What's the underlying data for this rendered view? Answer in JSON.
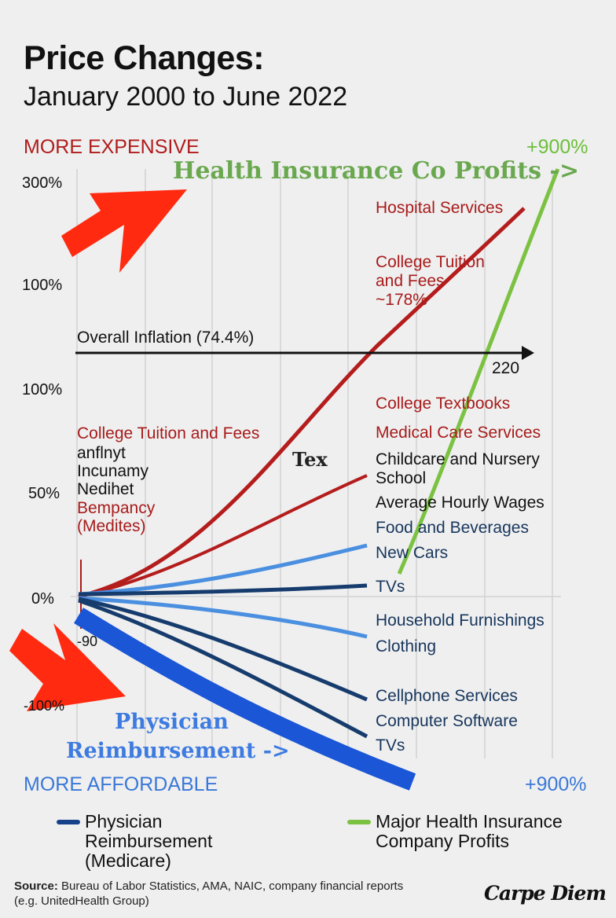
{
  "header": {
    "title": "Price Changes:",
    "subtitle": "January 2000 to June 2022"
  },
  "chart_data": {
    "type": "line",
    "title": "Price Changes:",
    "subtitle": "January 2000 to June 2022",
    "ytick_labels": [
      "300%",
      "100%",
      "100%",
      "50%",
      "0%",
      "-90",
      "-100%"
    ],
    "top_label": "MORE EXPENSIVE",
    "bottom_label": "MORE AFFORDABLE",
    "top_right_value": "+900%",
    "bottom_right_value": "+900%",
    "grid": true,
    "inflation": {
      "label": "Overall Inflation (74.4%)",
      "value_label": "220"
    },
    "annotations": {
      "health_insurance": "Health Insurance Co Profits ->",
      "physician_1": "Physician",
      "physician_2": "Reimbursement ->",
      "tex": "Tex"
    },
    "left_labels": [
      {
        "text": "College Tuition and Fees",
        "color": "#a81b1b"
      },
      {
        "text": "anflnyt",
        "color": "#111111"
      },
      {
        "text": "Incunamy",
        "color": "#111111"
      },
      {
        "text": "Nedihet",
        "color": "#111111"
      },
      {
        "text": "Bempancy",
        "color": "#a81b1b"
      },
      {
        "text": "(Medites)",
        "color": "#a81b1b"
      }
    ],
    "right_labels": [
      {
        "text": "Hospital Services",
        "color": "#a81b1b"
      },
      {
        "text": "College Tuition",
        "color": "#a81b1b"
      },
      {
        "text": "and Fees",
        "color": "#a81b1b"
      },
      {
        "text": "~178%",
        "color": "#a81b1b"
      },
      {
        "text": "College Textbooks",
        "color": "#a81b1b"
      },
      {
        "text": "Medical Care Services",
        "color": "#a81b1b"
      },
      {
        "text": "Childcare and Nursery",
        "color": "#111111"
      },
      {
        "text": "School",
        "color": "#111111"
      },
      {
        "text": "Average Hourly Wages",
        "color": "#111111"
      },
      {
        "text": "Food and Beverages",
        "color": "#17365d"
      },
      {
        "text": "New Cars",
        "color": "#17365d"
      },
      {
        "text": "TVs",
        "color": "#17365d"
      },
      {
        "text": "Household Furnishings",
        "color": "#17365d"
      },
      {
        "text": "Clothing",
        "color": "#17365d"
      },
      {
        "text": "Cellphone Services",
        "color": "#17365d"
      },
      {
        "text": "Computer Software",
        "color": "#17365d"
      },
      {
        "text": "TVs",
        "color": "#17365d"
      }
    ],
    "series": [
      {
        "name": "Hospital Services",
        "color": "#b51d1d"
      },
      {
        "name": "Medical Care Services",
        "color": "#b51d1d"
      },
      {
        "name": "New Cars",
        "color": "#4a8fe0"
      },
      {
        "name": "TVs",
        "color": "#163c6e"
      },
      {
        "name": "Household Furnishings",
        "color": "#4a8fe0"
      },
      {
        "name": "Cellphone Services",
        "color": "#163c6e"
      },
      {
        "name": "Computer Software",
        "color": "#163c6e"
      },
      {
        "name": "Physician Reimbursement (Medicare)",
        "color": "#1a56d6"
      },
      {
        "name": "Major Health Insurance Company Profits",
        "color": "#7cc242"
      }
    ]
  },
  "legend": {
    "items": [
      {
        "lines": [
          "Physician",
          "Reimbursement",
          "(Medicare)"
        ],
        "color": "#17408a"
      },
      {
        "lines": [
          "Major Health Insurance",
          "Company Profits"
        ],
        "color": "#7cc242"
      }
    ]
  },
  "footer": {
    "source_label": "Source:",
    "source_text": "Bureau of Labor Statistics, AMA, NAIC, company financial reports",
    "source_text2": "(e.g. UnitedHealth Group)",
    "brand": "Carpe Diem"
  },
  "icons": [
    "arrow-up-right-icon",
    "arrow-down-right-icon"
  ]
}
